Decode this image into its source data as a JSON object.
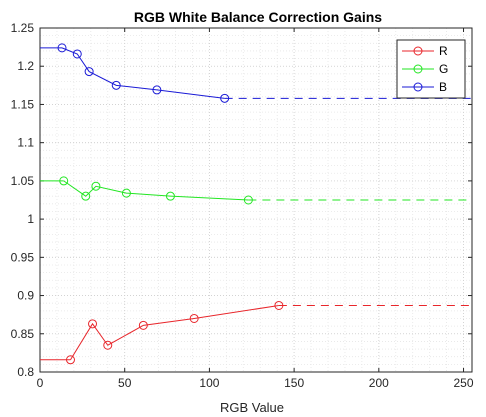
{
  "chart_data": {
    "type": "line",
    "title": "RGB White Balance Correction Gains",
    "xlabel": "RGB Value",
    "ylabel": "",
    "xlim": [
      0,
      255
    ],
    "ylim": [
      0.8,
      1.25
    ],
    "xticks": [
      0,
      50,
      100,
      150,
      200,
      250
    ],
    "yticks": [
      0.8,
      0.85,
      0.9,
      0.95,
      1,
      1.05,
      1.1,
      1.15,
      1.2,
      1.25
    ],
    "xtick_labels": [
      "0",
      "50",
      "100",
      "150",
      "200",
      "250"
    ],
    "ytick_labels": [
      "0.8",
      "0.85",
      "0.9",
      "0.95",
      "1",
      "1.05",
      "1.1",
      "1.15",
      "1.2",
      "1.25"
    ],
    "grid": "major and minor, dotted",
    "legend_position": "top-right",
    "series": [
      {
        "name": "R",
        "color": "#e8262b",
        "points": [
          [
            18,
            0.816
          ],
          [
            31,
            0.863
          ],
          [
            40,
            0.835
          ],
          [
            61,
            0.861
          ],
          [
            91,
            0.87
          ],
          [
            141,
            0.887
          ]
        ],
        "extend_left": 0.816,
        "extend_right": 0.887
      },
      {
        "name": "G",
        "color": "#22e622",
        "points": [
          [
            14,
            1.05
          ],
          [
            27,
            1.03
          ],
          [
            33,
            1.043
          ],
          [
            51,
            1.034
          ],
          [
            77,
            1.03
          ],
          [
            123,
            1.025
          ]
        ],
        "extend_left": 1.05,
        "extend_right": 1.025
      },
      {
        "name": "B",
        "color": "#1a1ad6",
        "points": [
          [
            13,
            1.224
          ],
          [
            22,
            1.216
          ],
          [
            29,
            1.193
          ],
          [
            45,
            1.175
          ],
          [
            69,
            1.169
          ],
          [
            109,
            1.158
          ]
        ],
        "extend_left": 1.224,
        "extend_right": 1.158
      }
    ]
  }
}
